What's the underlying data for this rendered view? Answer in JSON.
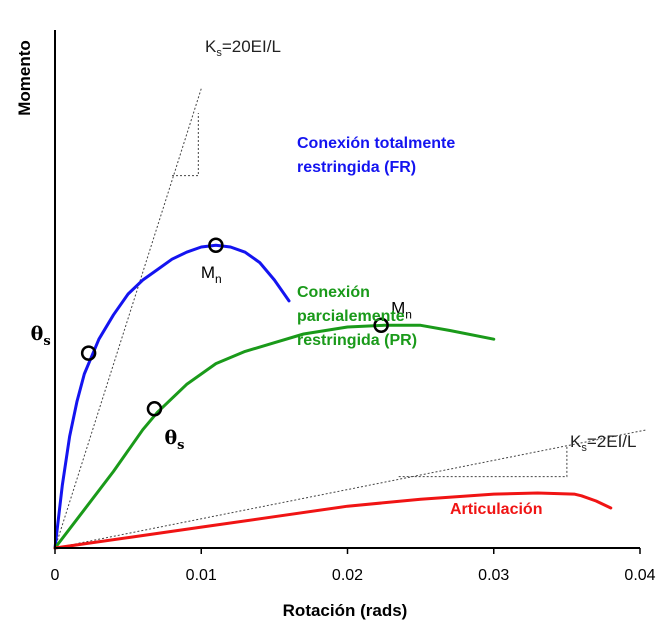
{
  "chart_data": {
    "type": "line",
    "title": "",
    "xlabel": "Rotación (rads)",
    "ylabel": "Momento",
    "xlim": [
      0,
      0.04
    ],
    "x_ticks": [
      {
        "value": 0,
        "label": "0"
      },
      {
        "value": 0.01,
        "label": "0.01"
      },
      {
        "value": 0.02,
        "label": "0.02"
      },
      {
        "value": 0.03,
        "label": "0.03"
      },
      {
        "value": 0.04,
        "label": "0.04"
      }
    ],
    "y_ticks_shown": false,
    "grid": false,
    "series": [
      {
        "name": "Conexión totalmente restringida (FR)",
        "label_lines": [
          "Conexión totalmente",
          "restringida (FR)"
        ],
        "color": "#1414f0",
        "x": [
          0,
          0.0005,
          0.001,
          0.0015,
          0.002,
          0.003,
          0.004,
          0.005,
          0.006,
          0.007,
          0.008,
          0.009,
          0.01,
          0.011,
          0.012,
          0.013,
          0.014,
          0.015,
          0.016
        ],
        "y": [
          0,
          0.18,
          0.32,
          0.42,
          0.5,
          0.6,
          0.67,
          0.73,
          0.77,
          0.8,
          0.83,
          0.85,
          0.865,
          0.87,
          0.865,
          0.85,
          0.82,
          0.77,
          0.71
        ]
      },
      {
        "name": "Conexión parcialemente restringida (PR)",
        "label_lines": [
          "Conexión",
          "parcialemente",
          "restringida (PR)"
        ],
        "color": "#1a9a1a",
        "x": [
          0,
          0.002,
          0.004,
          0.006,
          0.007,
          0.009,
          0.011,
          0.013,
          0.015,
          0.017,
          0.02,
          0.0225,
          0.025,
          0.027,
          0.03
        ],
        "y": [
          0,
          0.11,
          0.22,
          0.34,
          0.39,
          0.47,
          0.53,
          0.565,
          0.59,
          0.615,
          0.635,
          0.64,
          0.64,
          0.625,
          0.6
        ]
      },
      {
        "name": "Articulación",
        "label_lines": [
          "Articulación"
        ],
        "color": "#f01414",
        "x": [
          0,
          0.005,
          0.01,
          0.015,
          0.02,
          0.025,
          0.03,
          0.033,
          0.0355,
          0.036,
          0.037,
          0.038
        ],
        "y": [
          0,
          0.03,
          0.06,
          0.09,
          0.12,
          0.14,
          0.155,
          0.158,
          0.155,
          0.15,
          0.135,
          0.115
        ]
      }
    ],
    "reference_lines": [
      {
        "name": "Ks=20EI/L",
        "label_main": "K",
        "label_sub": "s",
        "label_rest": "=20EI/L",
        "x": [
          0,
          0.01
        ],
        "y": [
          0,
          1.32
        ],
        "triangle": {
          "x1": 0.008,
          "x2": 0.0098,
          "y1": 1.07,
          "y2": 1.25
        }
      },
      {
        "name": "Ks=2EI/L",
        "label_main": "K",
        "label_sub": "s",
        "label_rest": "=2EI/L",
        "x": [
          0,
          0.0405
        ],
        "y": [
          0,
          0.34
        ],
        "triangle": {
          "x1": 0.0235,
          "x2": 0.035,
          "y1": 0.205,
          "y2": 0.295
        }
      }
    ],
    "markers": [
      {
        "name": "Mn-fr",
        "series": "FR",
        "x": 0.011,
        "y": 0.87,
        "label_main": "M",
        "label_sub": "n"
      },
      {
        "name": "theta-s-fr",
        "series": "FR",
        "x": 0.0023,
        "y": 0.56,
        "label_main": "θ",
        "label_sub": "s"
      },
      {
        "name": "Mn-pr",
        "series": "PR",
        "x": 0.0223,
        "y": 0.64,
        "label_main": "M",
        "label_sub": "n"
      },
      {
        "name": "theta-s-pr",
        "series": "PR",
        "x": 0.0068,
        "y": 0.4,
        "label_main": "θ",
        "label_sub": "s"
      }
    ]
  }
}
